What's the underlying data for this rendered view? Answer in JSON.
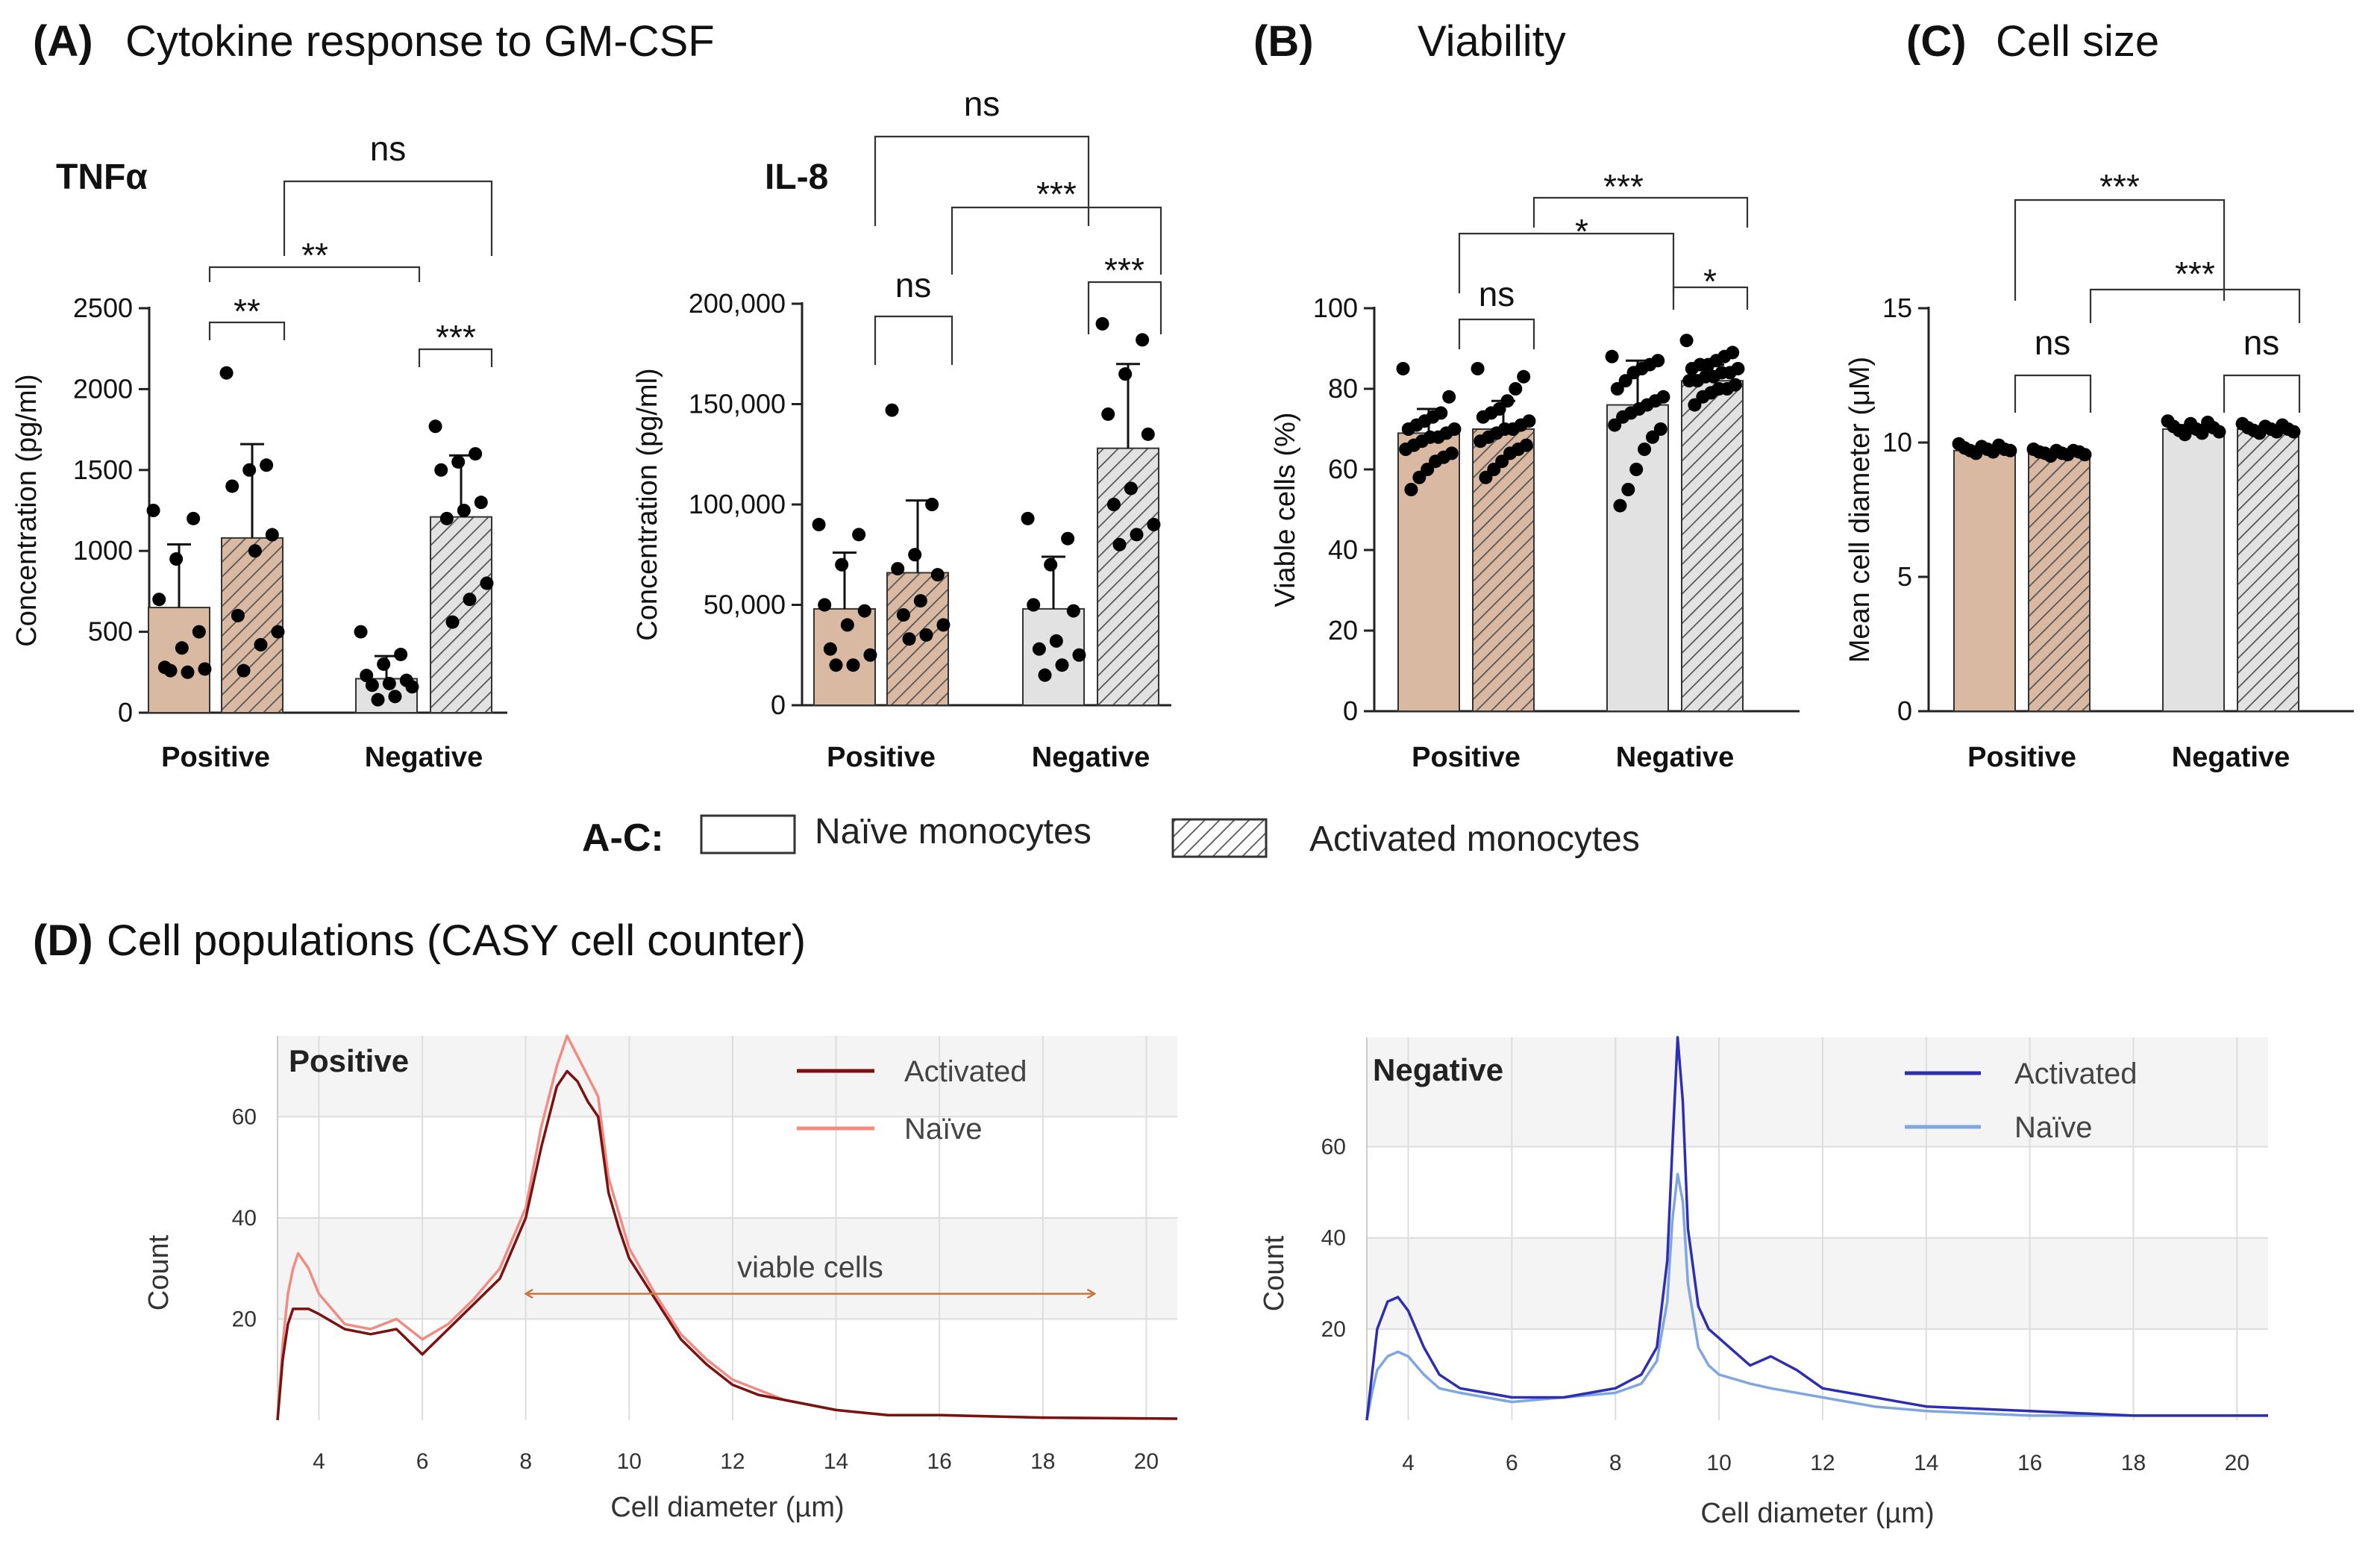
{
  "panels": {
    "A": {
      "letter": "(A)",
      "title": "Cytokine response to GM-CSF"
    },
    "B": {
      "letter": "(B)",
      "title": "Viability"
    },
    "C": {
      "letter": "(C)",
      "title": "Cell size"
    },
    "D": {
      "letter": "(D)",
      "title": "Cell populations  (CASY cell counter)"
    }
  },
  "legend": {
    "title": "A-C:",
    "naive": "Naïve monocytes",
    "activated": "Activated monocytes"
  },
  "colors": {
    "positive_fill": "#D9B9A1",
    "negative_fill": "#E2E2E2",
    "bar_edge": "#333333",
    "hatch": "#555555",
    "dot": "#000000",
    "pos_activated": "#7A1212",
    "pos_naive": "#F08C84",
    "neg_activated": "#2E2EB0",
    "neg_naive": "#7FA6E0",
    "grid": "#dddddd",
    "band": "#f4f4f4"
  },
  "chart_data": [
    {
      "id": "tnf",
      "type": "bar",
      "title": "TNFα",
      "ylabel": "Concentration (pg/ml)",
      "ylim": [
        0,
        2500
      ],
      "yticks": [
        0,
        500,
        1000,
        1500,
        2000,
        2500
      ],
      "ytick_labels": [
        "0",
        "500",
        "1000",
        "1500",
        "2000",
        "2500"
      ],
      "categories": [
        "Positive",
        "Negative"
      ],
      "series": [
        {
          "name": "Naïve monocytes",
          "values": [
            650,
            210
          ],
          "sd": [
            390,
            140
          ],
          "points": [
            [
              1250,
              1200,
              950,
              700,
              500,
              400,
              280,
              270,
              250,
              260
            ],
            [
              500,
              360,
              300,
              230,
              200,
              180,
              170,
              160,
              100,
              80
            ]
          ]
        },
        {
          "name": "Activated monocytes",
          "values": [
            1080,
            1210
          ],
          "sd": [
            580,
            380
          ],
          "points": [
            [
              2100,
              1530,
              1500,
              1400,
              1100,
              1000,
              600,
              500,
              420,
              260
            ],
            [
              1770,
              1600,
              1550,
              1500,
              1300,
              1250,
              1200,
              800,
              700,
              560
            ]
          ]
        }
      ],
      "significance": [
        {
          "label": "**",
          "from": [
            0,
            0
          ],
          "to": [
            0,
            1
          ]
        },
        {
          "label": "***",
          "from": [
            1,
            0
          ],
          "to": [
            1,
            1
          ]
        },
        {
          "label": "**",
          "from": [
            0,
            0
          ],
          "to": [
            1,
            0
          ]
        },
        {
          "label": "ns",
          "from": [
            0,
            1
          ],
          "to": [
            1,
            1
          ]
        }
      ]
    },
    {
      "id": "il8",
      "type": "bar",
      "title": "IL-8",
      "ylabel": "Concentration (pg/ml)",
      "ylim": [
        0,
        200000
      ],
      "yticks": [
        0,
        50000,
        100000,
        150000,
        200000
      ],
      "ytick_labels": [
        "0",
        "50,000",
        "100,000",
        "150,000",
        "200,000"
      ],
      "categories": [
        "Positive",
        "Negative"
      ],
      "series": [
        {
          "name": "Naïve monocytes",
          "values": [
            48000,
            48000
          ],
          "sd": [
            28000,
            26000
          ],
          "points": [
            [
              90000,
              85000,
              70000,
              50000,
              47000,
              40000,
              28000,
              25000,
              20000,
              20000
            ],
            [
              93000,
              83000,
              70000,
              50000,
              47000,
              32000,
              28000,
              25000,
              20000,
              15000
            ]
          ]
        },
        {
          "name": "Activated monocytes",
          "values": [
            66000,
            128000
          ],
          "sd": [
            36000,
            42000
          ],
          "points": [
            [
              147000,
              100000,
              75000,
              68000,
              65000,
              52000,
              45000,
              40000,
              35000,
              33000
            ],
            [
              190000,
              182000,
              165000,
              145000,
              135000,
              108000,
              100000,
              90000,
              85000,
              80000
            ]
          ]
        }
      ],
      "significance": [
        {
          "label": "ns",
          "from": [
            0,
            0
          ],
          "to": [
            0,
            1
          ]
        },
        {
          "label": "***",
          "from": [
            1,
            0
          ],
          "to": [
            1,
            1
          ]
        },
        {
          "label": "***",
          "from": [
            0,
            1
          ],
          "to": [
            1,
            1
          ]
        },
        {
          "label": "ns",
          "from": [
            0,
            0
          ],
          "to": [
            1,
            0
          ]
        }
      ]
    },
    {
      "id": "viability",
      "type": "bar",
      "title": "",
      "ylabel": "Viable cells (%)",
      "ylim": [
        0,
        100
      ],
      "yticks": [
        0,
        20,
        40,
        60,
        80,
        100
      ],
      "ytick_labels": [
        "0",
        "20",
        "40",
        "60",
        "80",
        "100"
      ],
      "categories": [
        "Positive",
        "Negative"
      ],
      "series": [
        {
          "name": "Naïve monocytes",
          "values": [
            69,
            76
          ],
          "sd": [
            6,
            11
          ],
          "points": [
            [
              85,
              78,
              74,
              73,
              72,
              71,
              70,
              70,
              69,
              68,
              68,
              67,
              66,
              65,
              64,
              63,
              62,
              60,
              58,
              55
            ],
            [
              88,
              87,
              86,
              85,
              84,
              82,
              80,
              78,
              77,
              76,
              75,
              74,
              73,
              71,
              70,
              68,
              65,
              60,
              55,
              51
            ]
          ]
        },
        {
          "name": "Activated monocytes",
          "values": [
            70,
            82
          ],
          "sd": [
            7,
            4
          ],
          "points": [
            [
              85,
              83,
              80,
              77,
              75,
              74,
              73,
              72,
              71,
              70,
              70,
              69,
              68,
              67,
              66,
              65,
              64,
              62,
              60,
              58
            ],
            [
              92,
              89,
              88,
              87,
              86,
              86,
              85,
              85,
              84,
              84,
              83,
              83,
              82,
              82,
              81,
              80,
              80,
              79,
              78,
              76
            ]
          ]
        }
      ],
      "significance": [
        {
          "label": "ns",
          "from": [
            0,
            0
          ],
          "to": [
            0,
            1
          ]
        },
        {
          "label": "*",
          "from": [
            1,
            0
          ],
          "to": [
            1,
            1
          ]
        },
        {
          "label": "*",
          "from": [
            0,
            0
          ],
          "to": [
            1,
            0
          ]
        },
        {
          "label": "***",
          "from": [
            0,
            1
          ],
          "to": [
            1,
            1
          ]
        }
      ]
    },
    {
      "id": "cellsize",
      "type": "bar",
      "title": "",
      "ylabel": "Mean cell diameter (μM)",
      "ylim": [
        0,
        15
      ],
      "yticks": [
        0,
        5,
        10,
        15
      ],
      "ytick_labels": [
        "0",
        "5",
        "10",
        "15"
      ],
      "categories": [
        "Positive",
        "Negative"
      ],
      "series": [
        {
          "name": "Naïve monocytes",
          "values": [
            9.7,
            10.5
          ],
          "sd": [
            0.15,
            0.15
          ],
          "points": [
            [
              9.95,
              9.9,
              9.85,
              9.8,
              9.75,
              9.75,
              9.7,
              9.7,
              9.65,
              9.6
            ],
            [
              10.8,
              10.75,
              10.7,
              10.6,
              10.55,
              10.5,
              10.45,
              10.4,
              10.35,
              10.3
            ]
          ]
        },
        {
          "name": "Activated monocytes",
          "values": [
            9.6,
            10.5
          ],
          "sd": [
            0.1,
            0.1
          ],
          "points": [
            [
              9.75,
              9.7,
              9.7,
              9.65,
              9.65,
              9.6,
              9.6,
              9.55,
              9.55,
              9.5
            ],
            [
              10.7,
              10.65,
              10.6,
              10.55,
              10.5,
              10.5,
              10.45,
              10.4,
              10.4,
              10.35
            ]
          ]
        }
      ],
      "significance": [
        {
          "label": "ns",
          "from": [
            0,
            0
          ],
          "to": [
            0,
            1
          ]
        },
        {
          "label": "ns",
          "from": [
            1,
            0
          ],
          "to": [
            1,
            1
          ]
        },
        {
          "label": "***",
          "from": [
            0,
            1
          ],
          "to": [
            1,
            1
          ]
        },
        {
          "label": "***",
          "from": [
            0,
            0
          ],
          "to": [
            1,
            0
          ]
        }
      ]
    },
    {
      "id": "pos_hist",
      "type": "line",
      "title": "Positive",
      "xlabel": "Cell diameter (µm)",
      "ylabel": "Count",
      "xlim": [
        3.2,
        20.6
      ],
      "ylim": [
        0,
        76
      ],
      "xticks": [
        4,
        6,
        8,
        10,
        12,
        14,
        16,
        18,
        20
      ],
      "yticks": [
        20,
        40,
        60
      ],
      "annotation": {
        "text": "viable cells",
        "x_from": 8.0,
        "x_to": 19.0,
        "y": 25
      },
      "series": [
        {
          "name": "Activated",
          "x": [
            3.2,
            3.3,
            3.4,
            3.5,
            3.6,
            3.8,
            4.0,
            4.5,
            5.0,
            5.5,
            6.0,
            6.5,
            7.0,
            7.5,
            8.0,
            8.3,
            8.6,
            8.8,
            9.0,
            9.2,
            9.4,
            9.6,
            9.8,
            10.0,
            10.5,
            11.0,
            11.5,
            12.0,
            12.5,
            13.0,
            14.0,
            15.0,
            16.0,
            18.0,
            20.6
          ],
          "y": [
            0,
            12,
            19,
            22,
            22,
            22,
            21,
            18,
            17,
            18,
            13,
            18,
            23,
            28,
            40,
            54,
            66,
            69,
            67,
            63,
            60,
            45,
            38,
            32,
            24,
            16,
            11,
            7,
            5,
            4,
            2,
            1,
            1,
            0.5,
            0.3
          ]
        },
        {
          "name": "Naïve",
          "x": [
            3.2,
            3.3,
            3.4,
            3.5,
            3.6,
            3.8,
            4.0,
            4.5,
            5.0,
            5.5,
            6.0,
            6.5,
            7.0,
            7.5,
            8.0,
            8.3,
            8.6,
            8.8,
            9.0,
            9.2,
            9.4,
            9.6,
            9.8,
            10.0,
            10.5,
            11.0,
            11.5,
            12.0,
            12.5,
            13.0,
            14.0,
            15.0,
            16.0,
            18.0,
            20.6
          ],
          "y": [
            0,
            15,
            25,
            30,
            33,
            30,
            25,
            19,
            18,
            20,
            16,
            19,
            24,
            30,
            42,
            58,
            70,
            76,
            72,
            68,
            64,
            48,
            41,
            34,
            25,
            17,
            12,
            8,
            6,
            4,
            2,
            1,
            1,
            0.5,
            0.3
          ]
        }
      ]
    },
    {
      "id": "neg_hist",
      "type": "line",
      "title": "Negative",
      "xlabel": "Cell diameter (µm)",
      "ylabel": "Count",
      "xlim": [
        3.2,
        20.6
      ],
      "ylim": [
        0,
        84
      ],
      "xticks": [
        4,
        6,
        8,
        10,
        12,
        14,
        16,
        18,
        20
      ],
      "yticks": [
        20,
        40,
        60
      ],
      "series": [
        {
          "name": "Activated",
          "x": [
            3.2,
            3.3,
            3.4,
            3.6,
            3.8,
            4.0,
            4.3,
            4.6,
            5.0,
            5.5,
            6.0,
            7.0,
            8.0,
            8.5,
            8.8,
            9.0,
            9.1,
            9.2,
            9.3,
            9.4,
            9.6,
            9.8,
            10.0,
            10.3,
            10.6,
            11.0,
            11.5,
            12.0,
            13.0,
            14.0,
            16.0,
            18.0,
            20.6
          ],
          "y": [
            0,
            10,
            20,
            26,
            27,
            24,
            16,
            10,
            7,
            6,
            5,
            5,
            7,
            10,
            16,
            35,
            60,
            84,
            70,
            42,
            25,
            20,
            18,
            15,
            12,
            14,
            11,
            7,
            5,
            3,
            2,
            1,
            1
          ]
        },
        {
          "name": "Naïve",
          "x": [
            3.2,
            3.3,
            3.4,
            3.6,
            3.8,
            4.0,
            4.3,
            4.6,
            5.0,
            5.5,
            6.0,
            7.0,
            8.0,
            8.5,
            8.8,
            9.0,
            9.1,
            9.2,
            9.3,
            9.4,
            9.6,
            9.8,
            10.0,
            10.3,
            10.6,
            11.0,
            11.5,
            12.0,
            13.0,
            14.0,
            16.0,
            18.0,
            20.6
          ],
          "y": [
            0,
            6,
            11,
            14,
            15,
            14,
            10,
            7,
            6,
            5,
            4,
            5,
            6,
            8,
            13,
            26,
            44,
            54,
            48,
            30,
            16,
            12,
            10,
            9,
            8,
            7,
            6,
            5,
            3,
            2,
            1,
            1,
            1
          ]
        }
      ]
    }
  ]
}
